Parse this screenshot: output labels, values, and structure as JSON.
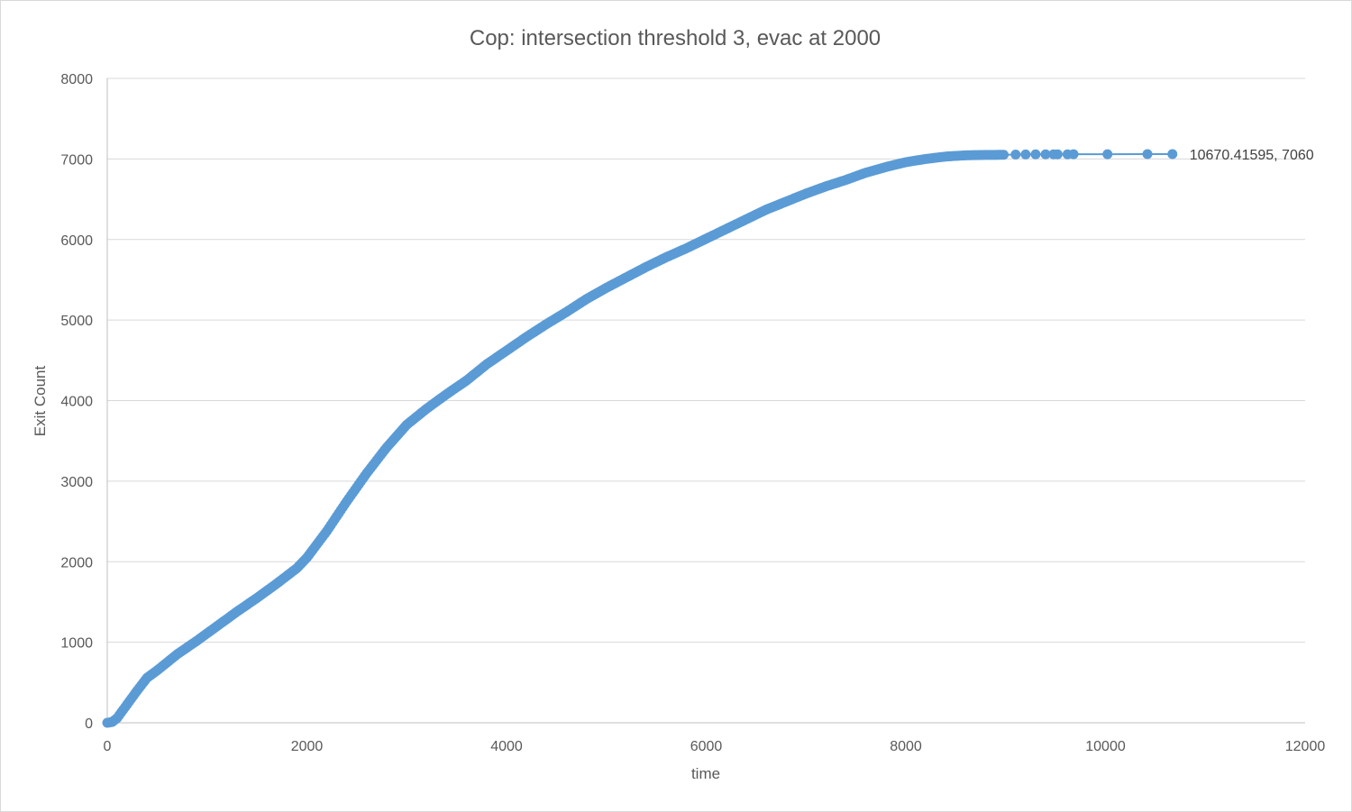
{
  "chart_data": {
    "type": "scatter",
    "title": "Cop: intersection threshold 3, evac at 2000",
    "xlabel": "time",
    "ylabel": "Exit Count",
    "xlim": [
      0,
      12000
    ],
    "ylim": [
      0,
      8000
    ],
    "x_ticks": [
      "0",
      "2000",
      "4000",
      "6000",
      "8000",
      "10000",
      "12000"
    ],
    "y_ticks": [
      "0",
      "1000",
      "2000",
      "3000",
      "4000",
      "5000",
      "6000",
      "7000",
      "8000"
    ],
    "grid": "horizontal",
    "legend": "none",
    "series_color": "#5b9bd5",
    "series": [
      {
        "points": [
          [
            0,
            0
          ],
          [
            50,
            10
          ],
          [
            100,
            60
          ],
          [
            200,
            230
          ],
          [
            300,
            400
          ],
          [
            400,
            560
          ],
          [
            500,
            650
          ],
          [
            700,
            850
          ],
          [
            900,
            1020
          ],
          [
            1100,
            1200
          ],
          [
            1300,
            1380
          ],
          [
            1500,
            1550
          ],
          [
            1700,
            1730
          ],
          [
            1900,
            1920
          ],
          [
            2000,
            2050
          ],
          [
            2200,
            2380
          ],
          [
            2400,
            2750
          ],
          [
            2600,
            3100
          ],
          [
            2800,
            3420
          ],
          [
            3000,
            3700
          ],
          [
            3200,
            3900
          ],
          [
            3400,
            4080
          ],
          [
            3600,
            4250
          ],
          [
            3800,
            4450
          ],
          [
            4000,
            4620
          ],
          [
            4200,
            4790
          ],
          [
            4400,
            4950
          ],
          [
            4600,
            5100
          ],
          [
            4800,
            5260
          ],
          [
            5000,
            5400
          ],
          [
            5200,
            5530
          ],
          [
            5400,
            5660
          ],
          [
            5600,
            5780
          ],
          [
            5800,
            5890
          ],
          [
            6000,
            6010
          ],
          [
            6200,
            6130
          ],
          [
            6400,
            6250
          ],
          [
            6600,
            6370
          ],
          [
            6800,
            6470
          ],
          [
            7000,
            6570
          ],
          [
            7200,
            6660
          ],
          [
            7400,
            6740
          ],
          [
            7600,
            6830
          ],
          [
            7800,
            6900
          ],
          [
            8000,
            6960
          ],
          [
            8200,
            7000
          ],
          [
            8400,
            7030
          ],
          [
            8600,
            7045
          ],
          [
            8800,
            7050
          ],
          [
            9000,
            7052
          ],
          [
            9100,
            7055
          ],
          [
            9200,
            7056
          ],
          [
            9300,
            7057
          ],
          [
            9400,
            7057
          ],
          [
            9480,
            7058
          ],
          [
            9520,
            7058
          ],
          [
            9620,
            7058
          ],
          [
            9680,
            7059
          ],
          [
            10020,
            7059
          ],
          [
            10420,
            7060
          ],
          [
            10670.41595,
            7060
          ]
        ]
      }
    ],
    "annotation": {
      "x": 10670.41595,
      "y": 7060,
      "text": "10670.41595, 7060"
    }
  }
}
